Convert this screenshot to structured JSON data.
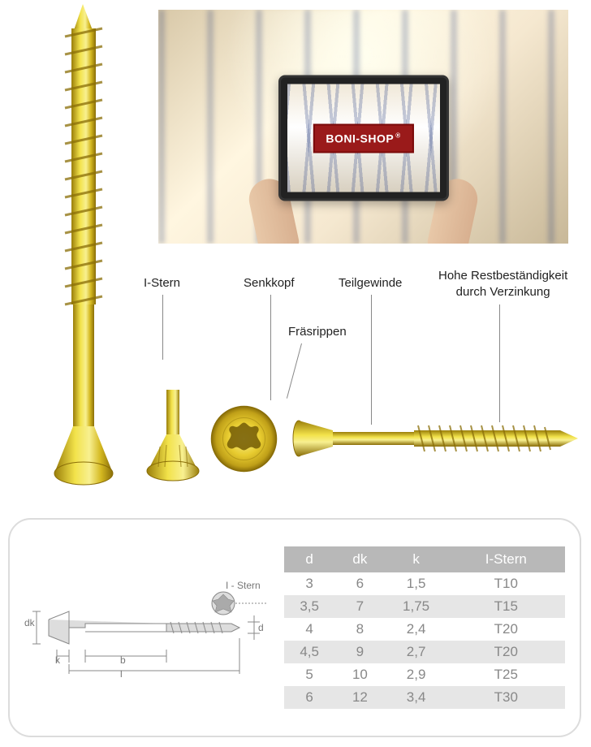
{
  "brand": "BONI-SHOP",
  "features": {
    "istern": "I-Stern",
    "senkkopf": "Senkkopf",
    "teilgewinde": "Teilgewinde",
    "rostbest_l1": "Hohe Restbeständigkeit",
    "rostbest_l2": "durch Verzinkung",
    "fraesrippen": "Fräsrippen"
  },
  "diagram_labels": {
    "istern": "I - Stern",
    "dk": "dk",
    "k": "k",
    "b": "b",
    "l": "l",
    "d": "d"
  },
  "spec_table": {
    "columns": [
      "d",
      "dk",
      "k",
      "I-Stern"
    ],
    "col_widths": [
      "18%",
      "18%",
      "22%",
      "42%"
    ],
    "header_bg": "#b8b8b8",
    "header_fg": "#ffffff",
    "cell_fg": "#888888",
    "alt_bg": "#e6e6e6",
    "fontsize": 17,
    "rows": [
      [
        "3",
        "6",
        "1,5",
        "T10"
      ],
      [
        "3,5",
        "7",
        "1,75",
        "T15"
      ],
      [
        "4",
        "8",
        "2,4",
        "T20"
      ],
      [
        "4,5",
        "9",
        "2,7",
        "T20"
      ],
      [
        "5",
        "10",
        "2,9",
        "T25"
      ],
      [
        "6",
        "12",
        "3,4",
        "T30"
      ]
    ]
  },
  "colors": {
    "screw_light": "#f2e24a",
    "screw_mid": "#d4b820",
    "screw_dark": "#9a7e0a",
    "brand_bg": "#9a1a1a",
    "panel_border": "#dcdcdc",
    "callout_line": "#888888"
  }
}
